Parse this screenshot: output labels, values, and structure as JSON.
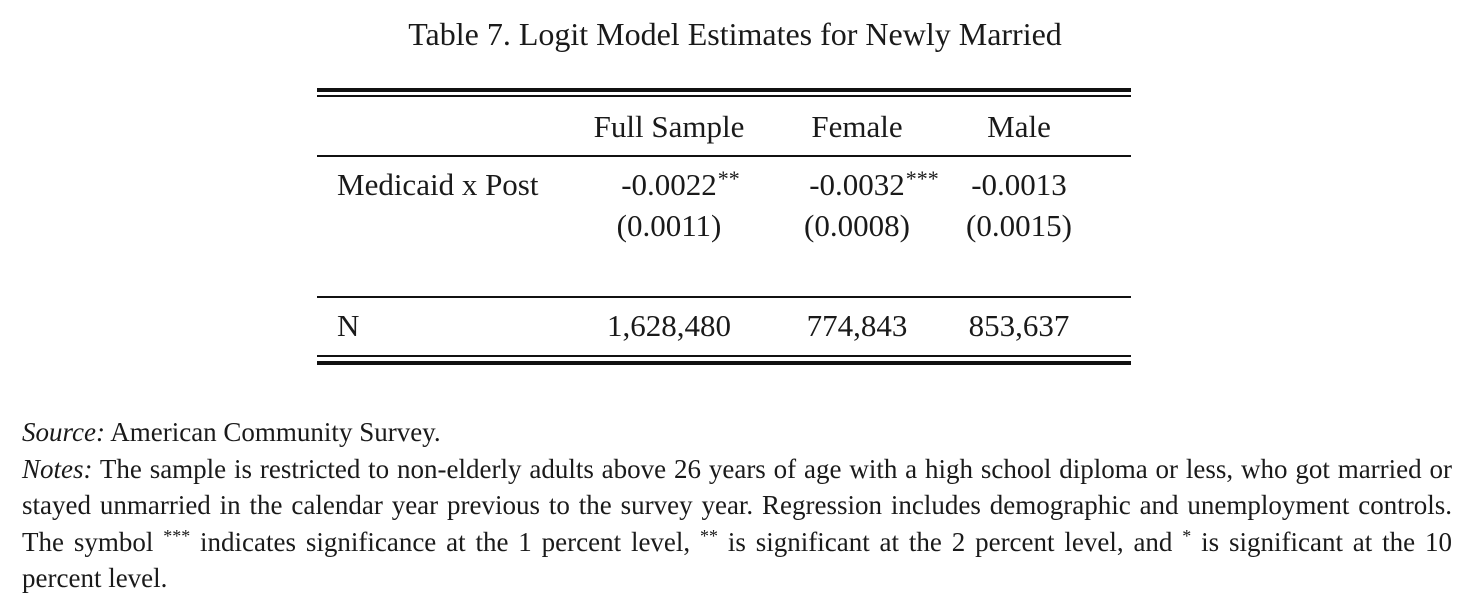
{
  "title": "Table 7.  Logit Model Estimates for Newly Married",
  "table": {
    "columns": [
      "Full Sample",
      "Female",
      "Male"
    ],
    "rows": [
      {
        "label": "Medicaid x Post",
        "estimates": [
          {
            "value": "-0.0022",
            "stars": "**"
          },
          {
            "value": "-0.0032",
            "stars": "***"
          },
          {
            "value": "-0.0013",
            "stars": ""
          }
        ],
        "std_errors": [
          "(0.0011)",
          "(0.0008)",
          "(0.0015)"
        ]
      },
      {
        "label": "N",
        "values": [
          "1,628,480",
          "774,843",
          "853,637"
        ]
      }
    ]
  },
  "source": {
    "label": "Source:",
    "text": " American Community Survey."
  },
  "notes": {
    "label": "Notes:",
    "part1": " The sample is restricted to non-elderly adults above 26 years of age with a high school diploma or less, who got married or stayed unmarried in the calendar year previous to the survey year.  Regression includes demographic and unemployment controls.  The symbol ",
    "sym1": "***",
    "part2": " indicates significance at the 1 percent level, ",
    "sym2": "**",
    "part3": " is significant at the 2 percent level, and ",
    "sym3": "*",
    "part4": " is significant at the 10 percent level."
  }
}
